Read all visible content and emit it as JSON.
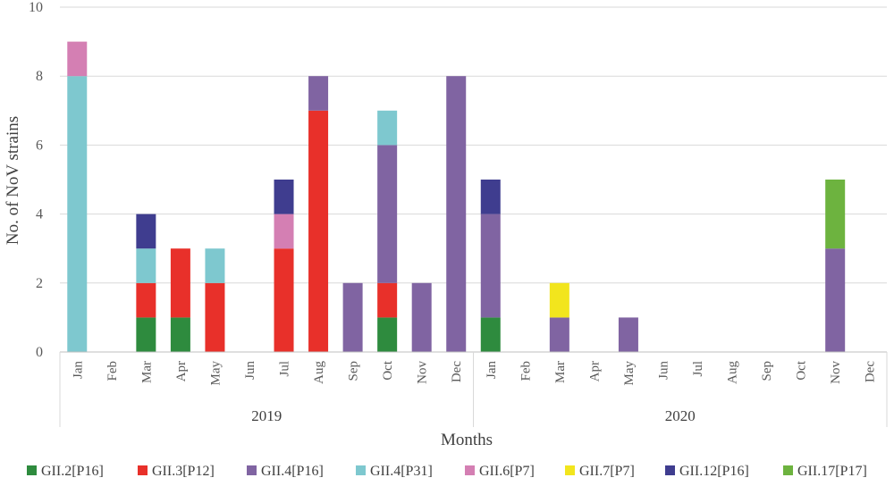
{
  "chart_data": {
    "type": "bar",
    "stacked": true,
    "title": "",
    "xlabel": "Months",
    "ylabel": "No. of NoV strains",
    "ylim": [
      0,
      10
    ],
    "y_ticks": [
      0,
      2,
      4,
      6,
      8,
      10
    ],
    "grid": true,
    "legend_position": "bottom",
    "groups": [
      {
        "label": "2019",
        "categories": [
          "Jan",
          "Feb",
          "Mar",
          "Apr",
          "May",
          "Jun",
          "Jul",
          "Aug",
          "Sep",
          "Oct",
          "Nov",
          "Dec"
        ]
      },
      {
        "label": "2020",
        "categories": [
          "Jan",
          "Feb",
          "Mar",
          "Apr",
          "May",
          "Jun",
          "Jul",
          "Aug",
          "Sep",
          "Oct",
          "Nov",
          "Dec"
        ]
      }
    ],
    "series": [
      {
        "name": "GII.2[P16]",
        "color": "#2e8b3e",
        "values": [
          0,
          0,
          1,
          1,
          0,
          0,
          0,
          0,
          0,
          1,
          0,
          0,
          1,
          0,
          0,
          0,
          0,
          0,
          0,
          0,
          0,
          0,
          0,
          0
        ]
      },
      {
        "name": "GII.3[P12]",
        "color": "#e8302a",
        "values": [
          0,
          0,
          1,
          2,
          2,
          0,
          3,
          7,
          0,
          1,
          0,
          0,
          0,
          0,
          0,
          0,
          0,
          0,
          0,
          0,
          0,
          0,
          0,
          0
        ]
      },
      {
        "name": "GII.4[P16]",
        "color": "#8064a2",
        "values": [
          0,
          0,
          0,
          0,
          0,
          0,
          0,
          1,
          2,
          4,
          2,
          8,
          3,
          0,
          1,
          0,
          1,
          0,
          0,
          0,
          0,
          0,
          3,
          0
        ]
      },
      {
        "name": "GII.4[P31]",
        "color": "#7ec8cf",
        "values": [
          8,
          0,
          1,
          0,
          1,
          0,
          0,
          0,
          0,
          1,
          0,
          0,
          0,
          0,
          0,
          0,
          0,
          0,
          0,
          0,
          0,
          0,
          0,
          0
        ]
      },
      {
        "name": "GII.6[P7]",
        "color": "#d47fb3",
        "values": [
          1,
          0,
          0,
          0,
          0,
          0,
          1,
          0,
          0,
          0,
          0,
          0,
          0,
          0,
          0,
          0,
          0,
          0,
          0,
          0,
          0,
          0,
          0,
          0
        ]
      },
      {
        "name": "GII.7[P7]",
        "color": "#f2e51d",
        "values": [
          0,
          0,
          0,
          0,
          0,
          0,
          0,
          0,
          0,
          0,
          0,
          0,
          0,
          0,
          1,
          0,
          0,
          0,
          0,
          0,
          0,
          0,
          0,
          0
        ]
      },
      {
        "name": "GII.12[P16]",
        "color": "#3f3d8f",
        "values": [
          0,
          0,
          1,
          0,
          0,
          0,
          1,
          0,
          0,
          0,
          0,
          0,
          1,
          0,
          0,
          0,
          0,
          0,
          0,
          0,
          0,
          0,
          0,
          0
        ]
      },
      {
        "name": "GII.17[P17]",
        "color": "#6db33f",
        "values": [
          0,
          0,
          0,
          0,
          0,
          0,
          0,
          0,
          0,
          0,
          0,
          0,
          0,
          0,
          0,
          0,
          0,
          0,
          0,
          0,
          0,
          0,
          2,
          0
        ]
      }
    ]
  }
}
